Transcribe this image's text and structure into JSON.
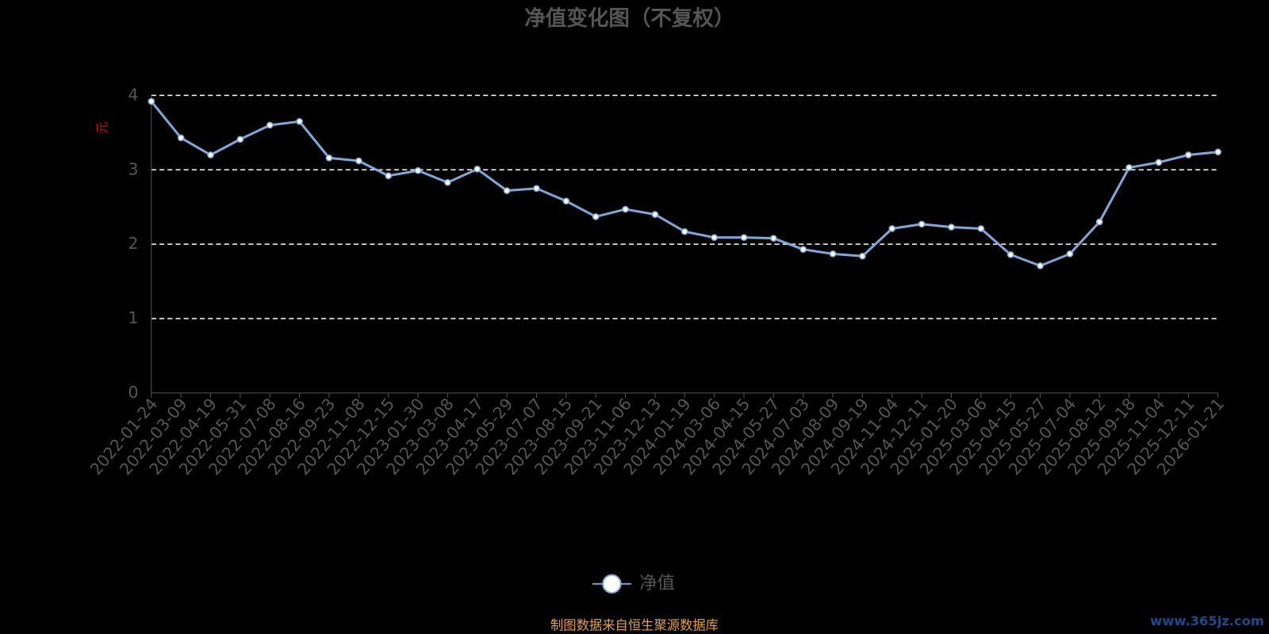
{
  "chart_data": {
    "type": "line",
    "title": "净值变化图（不复权）",
    "y_label": "元",
    "categories": [
      "2022-01-24",
      "2022-03-09",
      "2022-04-19",
      "2022-05-31",
      "2022-07-08",
      "2022-08-16",
      "2022-09-23",
      "2022-11-08",
      "2022-12-15",
      "2023-01-30",
      "2023-03-08",
      "2023-04-17",
      "2023-05-29",
      "2023-07-07",
      "2023-08-15",
      "2023-09-21",
      "2023-11-06",
      "2023-12-13",
      "2024-01-19",
      "2024-03-06",
      "2024-04-15",
      "2024-05-27",
      "2024-07-03",
      "2024-08-09",
      "2024-09-19",
      "2024-11-04",
      "2024-12-11",
      "2025-01-20",
      "2025-03-06",
      "2025-04-15",
      "2025-05-27",
      "2025-07-04",
      "2025-08-12",
      "2025-09-18",
      "2025-11-04",
      "2025-12-11",
      "2026-01-21"
    ],
    "series": [
      {
        "name": "净值",
        "color": "#7fa6d6",
        "values": [
          3.92,
          3.43,
          3.2,
          3.41,
          3.6,
          3.65,
          3.16,
          3.12,
          2.92,
          2.99,
          2.83,
          3.01,
          2.72,
          2.75,
          2.58,
          2.37,
          2.47,
          2.4,
          2.17,
          2.09,
          2.09,
          2.08,
          1.93,
          1.87,
          1.84,
          2.21,
          2.27,
          2.23,
          2.21,
          1.86,
          1.71,
          1.87,
          2.3,
          3.03,
          3.1,
          3.2,
          3.24
        ]
      }
    ],
    "ylim": [
      0,
      4
    ],
    "yticks": [
      0,
      1,
      2,
      3,
      4
    ],
    "grid": true,
    "source": "制图数据来自恒生聚源数据库",
    "watermark": "www.365jz.com"
  }
}
